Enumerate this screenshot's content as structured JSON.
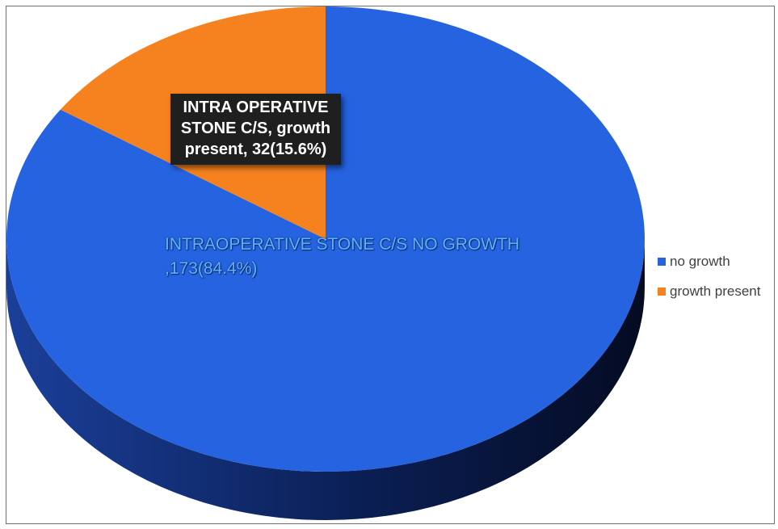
{
  "chart_data": {
    "type": "pie",
    "title": "",
    "slices": [
      {
        "name": "no growth",
        "value": 173,
        "percent": 84.4,
        "color": "#2563e0"
      },
      {
        "name": "growth present",
        "value": 32,
        "percent": 15.6,
        "color": "#f5821f"
      }
    ],
    "data_labels": {
      "no_growth": "INTRAOPERATIVE STONE C/S NO GROWTH ,173(84.4%)",
      "growth_present": "INTRA OPERATIVE STONE C/S, growth present, 32(15.6%)"
    },
    "legend": {
      "position": "right",
      "entries": [
        "no growth",
        "growth present"
      ]
    },
    "style": "3d"
  }
}
